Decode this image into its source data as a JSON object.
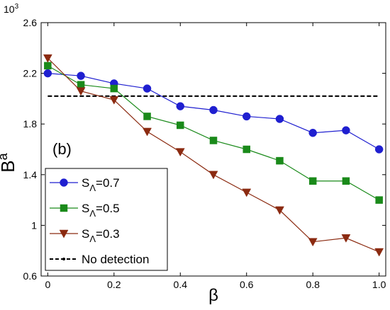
{
  "chart_data": {
    "type": "line",
    "panel_label": "(b)",
    "xlabel": "β",
    "ylabel_main": "B",
    "ylabel_sup": "a",
    "y_multiplier": "10",
    "y_multiplier_exp": "3",
    "xlim": [
      -0.02,
      1.02
    ],
    "ylim": [
      0.6,
      2.6
    ],
    "x_ticks": [
      0,
      0.2,
      0.4,
      0.6,
      0.8,
      1.0
    ],
    "x_tick_labels": [
      "0",
      "0.2",
      "0.4",
      "0.6",
      "0.8",
      "1.0"
    ],
    "y_ticks": [
      0.6,
      1.0,
      1.4,
      1.8,
      2.2,
      2.6
    ],
    "y_tick_labels": [
      "0.6",
      "1",
      "1.4",
      "1.8",
      "2.2",
      "2.6"
    ],
    "grid": false,
    "legend_position": "bottom-left",
    "x": [
      0,
      0.1,
      0.2,
      0.3,
      0.4,
      0.5,
      0.6,
      0.7,
      0.8,
      0.9,
      1.0
    ],
    "series": [
      {
        "name": "S",
        "name_sub": "Λ",
        "name_value": "=0.7",
        "color": "#1f1fd0",
        "marker": "circle",
        "values": [
          2.2,
          2.18,
          2.12,
          2.08,
          1.94,
          1.91,
          1.86,
          1.84,
          1.73,
          1.75,
          1.6
        ]
      },
      {
        "name": "S",
        "name_sub": "Λ",
        "name_value": "=0.5",
        "color": "#1a8a1a",
        "marker": "square",
        "values": [
          2.26,
          2.11,
          2.08,
          1.86,
          1.79,
          1.67,
          1.6,
          1.51,
          1.35,
          1.35,
          1.2
        ]
      },
      {
        "name": "S",
        "name_sub": "Λ",
        "name_value": "=0.3",
        "color": "#8b2a10",
        "marker": "triangle-down",
        "values": [
          2.32,
          2.06,
          1.99,
          1.74,
          1.58,
          1.4,
          1.26,
          1.12,
          0.87,
          0.9,
          0.79
        ]
      }
    ],
    "reference_line": {
      "name": "No detection",
      "value": 2.02,
      "color": "#000000",
      "style": "dashed"
    }
  }
}
